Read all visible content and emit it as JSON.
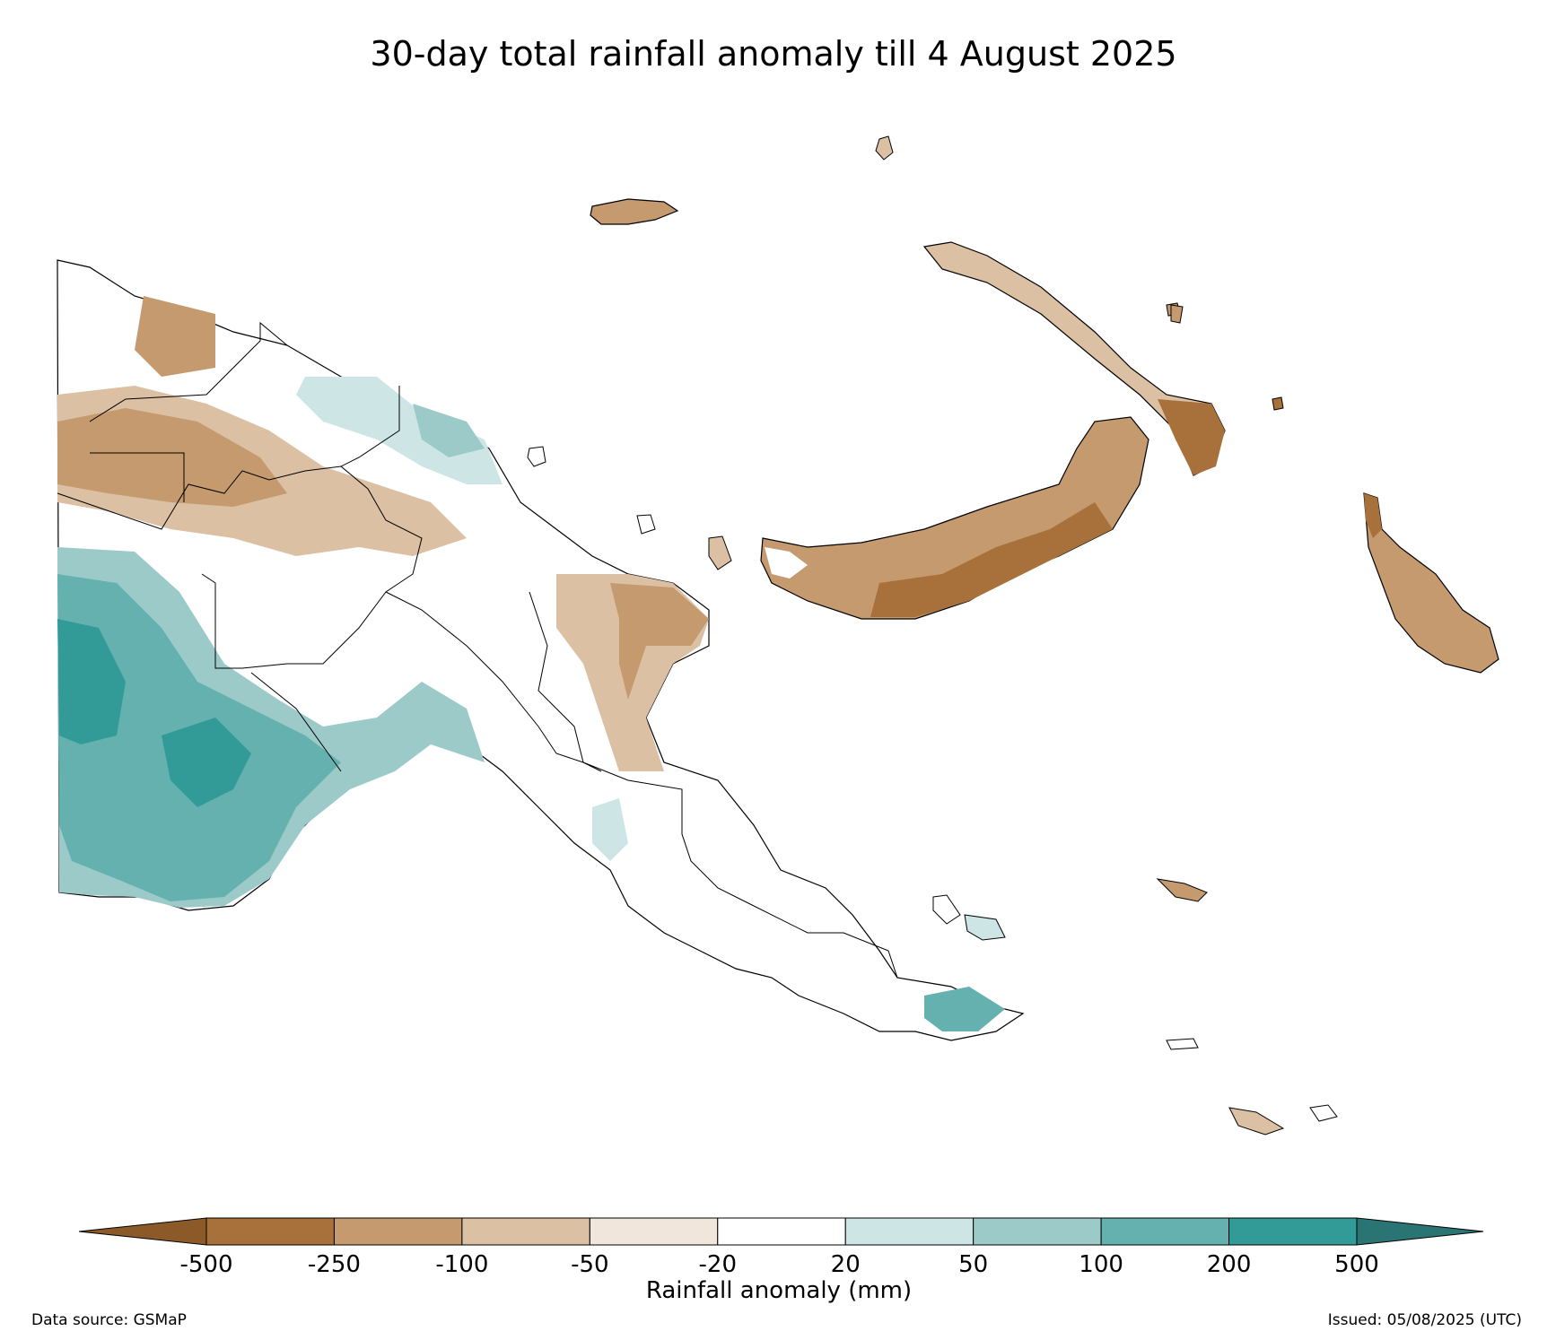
{
  "title": "30-day total rainfall anomaly till 4 August 2025",
  "colorbar": {
    "label": "Rainfall anomaly (mm)",
    "ticks": [
      "-500",
      "-250",
      "-100",
      "-50",
      "-20",
      "20",
      "50",
      "100",
      "200",
      "500"
    ],
    "extend": "both",
    "colors": {
      "under": "#8c5a28",
      "over": "#2a7573",
      "bins": [
        "#a8713b",
        "#c49a6e",
        "#dbc0a4",
        "#f1e6dc",
        "#ffffff",
        "#cde6e5",
        "#9ccac9",
        "#65b1af",
        "#329b97"
      ]
    }
  },
  "legend_lines": {
    "left": "Data source: GSMaP",
    "right": "Issued: 05/08/2025 (UTC)"
  }
}
